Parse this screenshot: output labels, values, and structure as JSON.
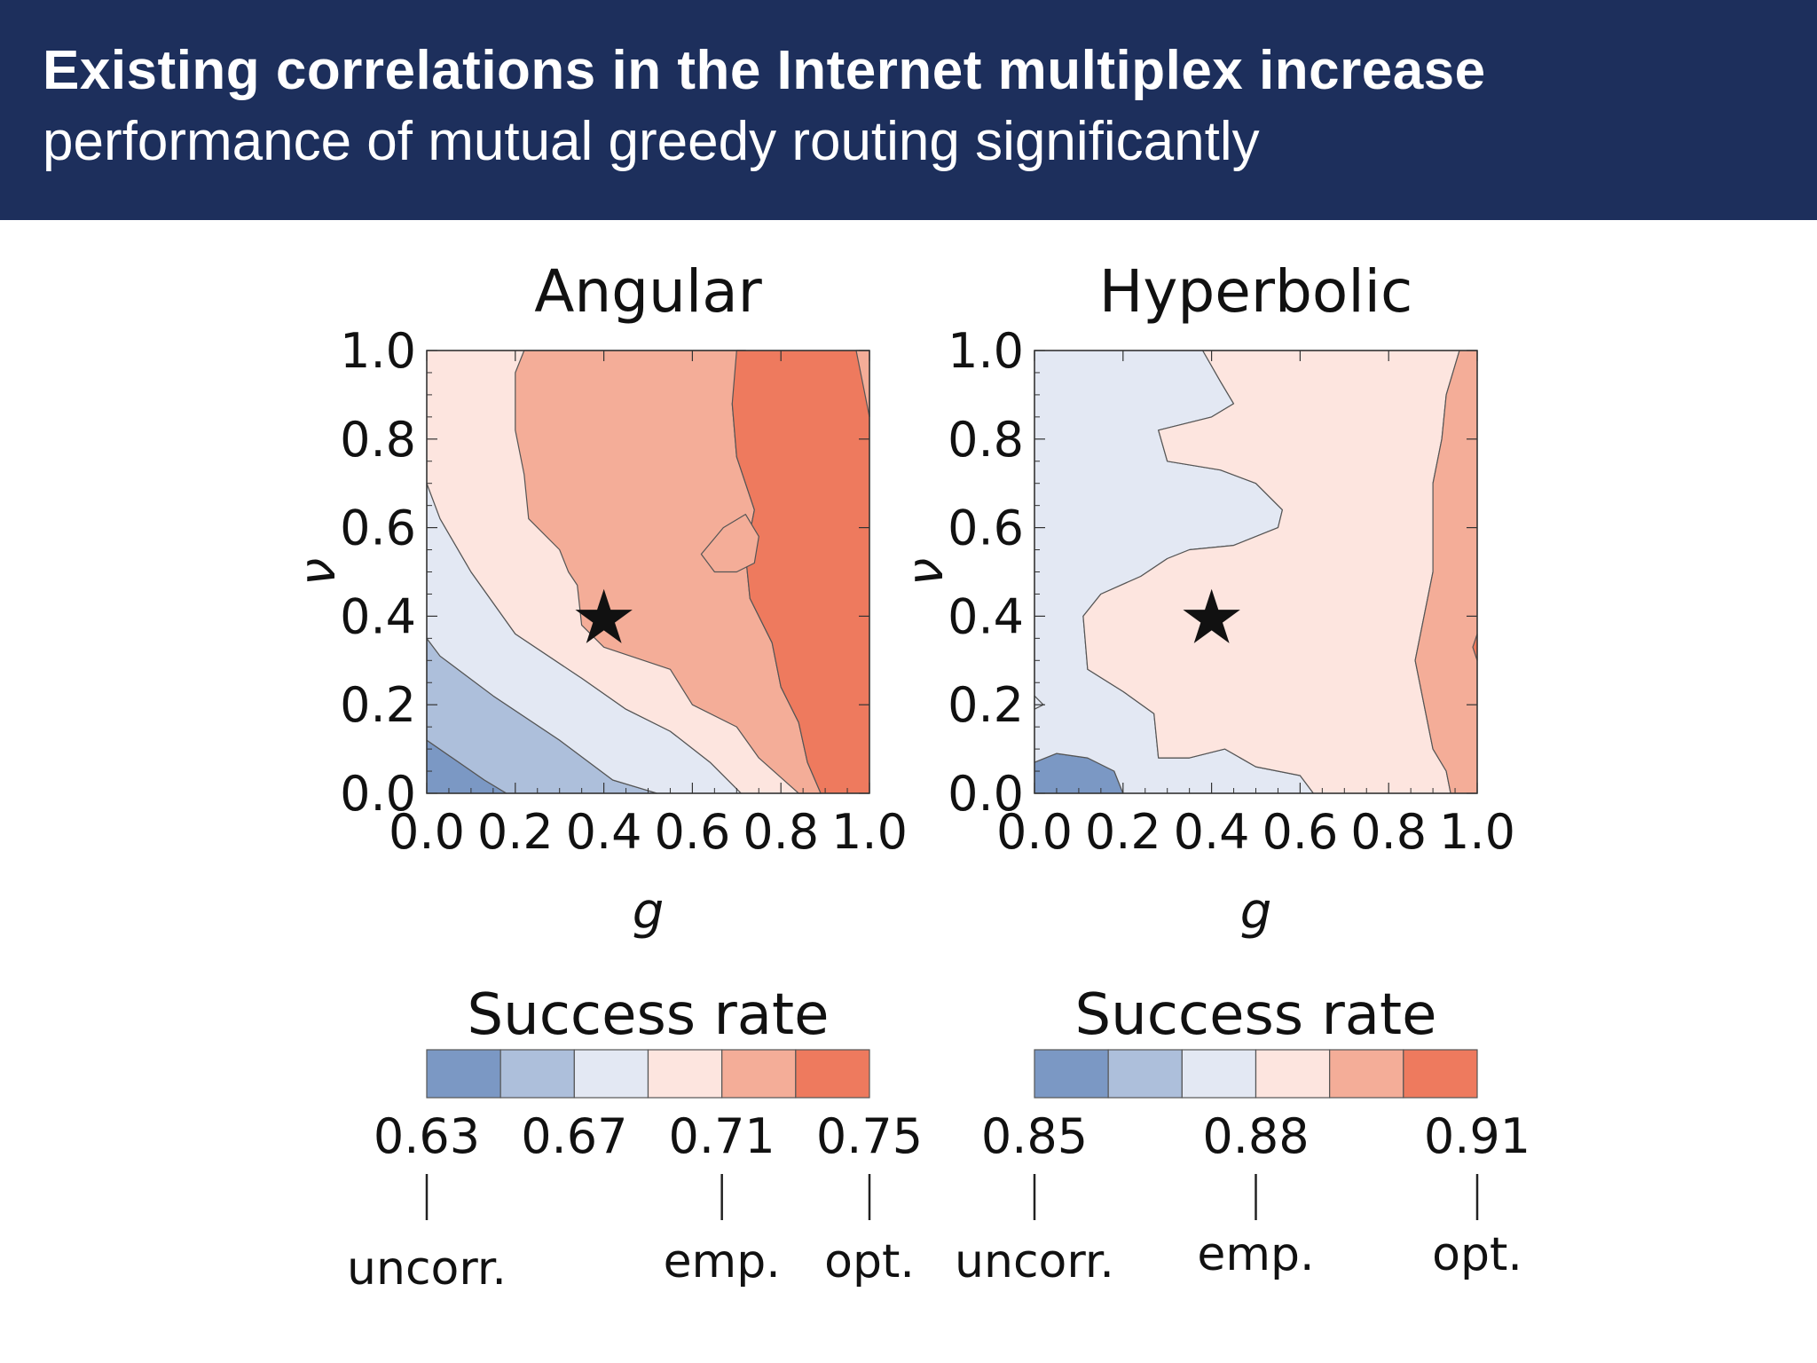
{
  "banner": {
    "title": "Existing correlations in the Internet multiplex increase",
    "subtitle": "performance of mutual greedy routing significantly"
  },
  "chart_data": [
    {
      "type": "heatmap",
      "title": "Angular",
      "xlabel": "g",
      "ylabel": "ν",
      "xlim": [
        0.0,
        1.0
      ],
      "ylim": [
        0.0,
        1.0
      ],
      "x_ticks": [
        "0.0",
        "0.2",
        "0.4",
        "0.6",
        "0.8",
        "1.0"
      ],
      "y_ticks": [
        "0.0",
        "0.2",
        "0.4",
        "0.6",
        "0.8",
        "1.0"
      ],
      "marker": {
        "symbol": "★",
        "x": 0.4,
        "y": 0.4
      },
      "colorbar": {
        "title": "Success rate",
        "colors": [
          "#7b98c4",
          "#adbfdb",
          "#e3e8f3",
          "#fde5df",
          "#f4ad98",
          "#ee7a5e"
        ],
        "labels": [
          {
            "value": 0.63,
            "text": "0.63",
            "note": "uncorr."
          },
          {
            "value": 0.67,
            "text": "0.67",
            "note": ""
          },
          {
            "value": 0.71,
            "text": "0.71",
            "note": "emp."
          },
          {
            "value": 0.75,
            "text": "0.75",
            "note": "opt."
          }
        ]
      }
    },
    {
      "type": "heatmap",
      "title": "Hyperbolic",
      "xlabel": "g",
      "ylabel": "ν",
      "xlim": [
        0.0,
        1.0
      ],
      "ylim": [
        0.0,
        1.0
      ],
      "x_ticks": [
        "0.0",
        "0.2",
        "0.4",
        "0.6",
        "0.8",
        "1.0"
      ],
      "y_ticks": [
        "0.0",
        "0.2",
        "0.4",
        "0.6",
        "0.8",
        "1.0"
      ],
      "marker": {
        "symbol": "★",
        "x": 0.4,
        "y": 0.4
      },
      "colorbar": {
        "title": "Success rate",
        "colors": [
          "#7b98c4",
          "#adbfdb",
          "#e3e8f3",
          "#fde5df",
          "#f4ad98",
          "#ee7a5e"
        ],
        "labels": [
          {
            "value": 0.85,
            "text": "0.85",
            "note": "uncorr."
          },
          {
            "value": 0.88,
            "text": "0.88",
            "note": "emp."
          },
          {
            "value": 0.91,
            "text": "0.91",
            "note": "opt."
          }
        ]
      }
    }
  ]
}
